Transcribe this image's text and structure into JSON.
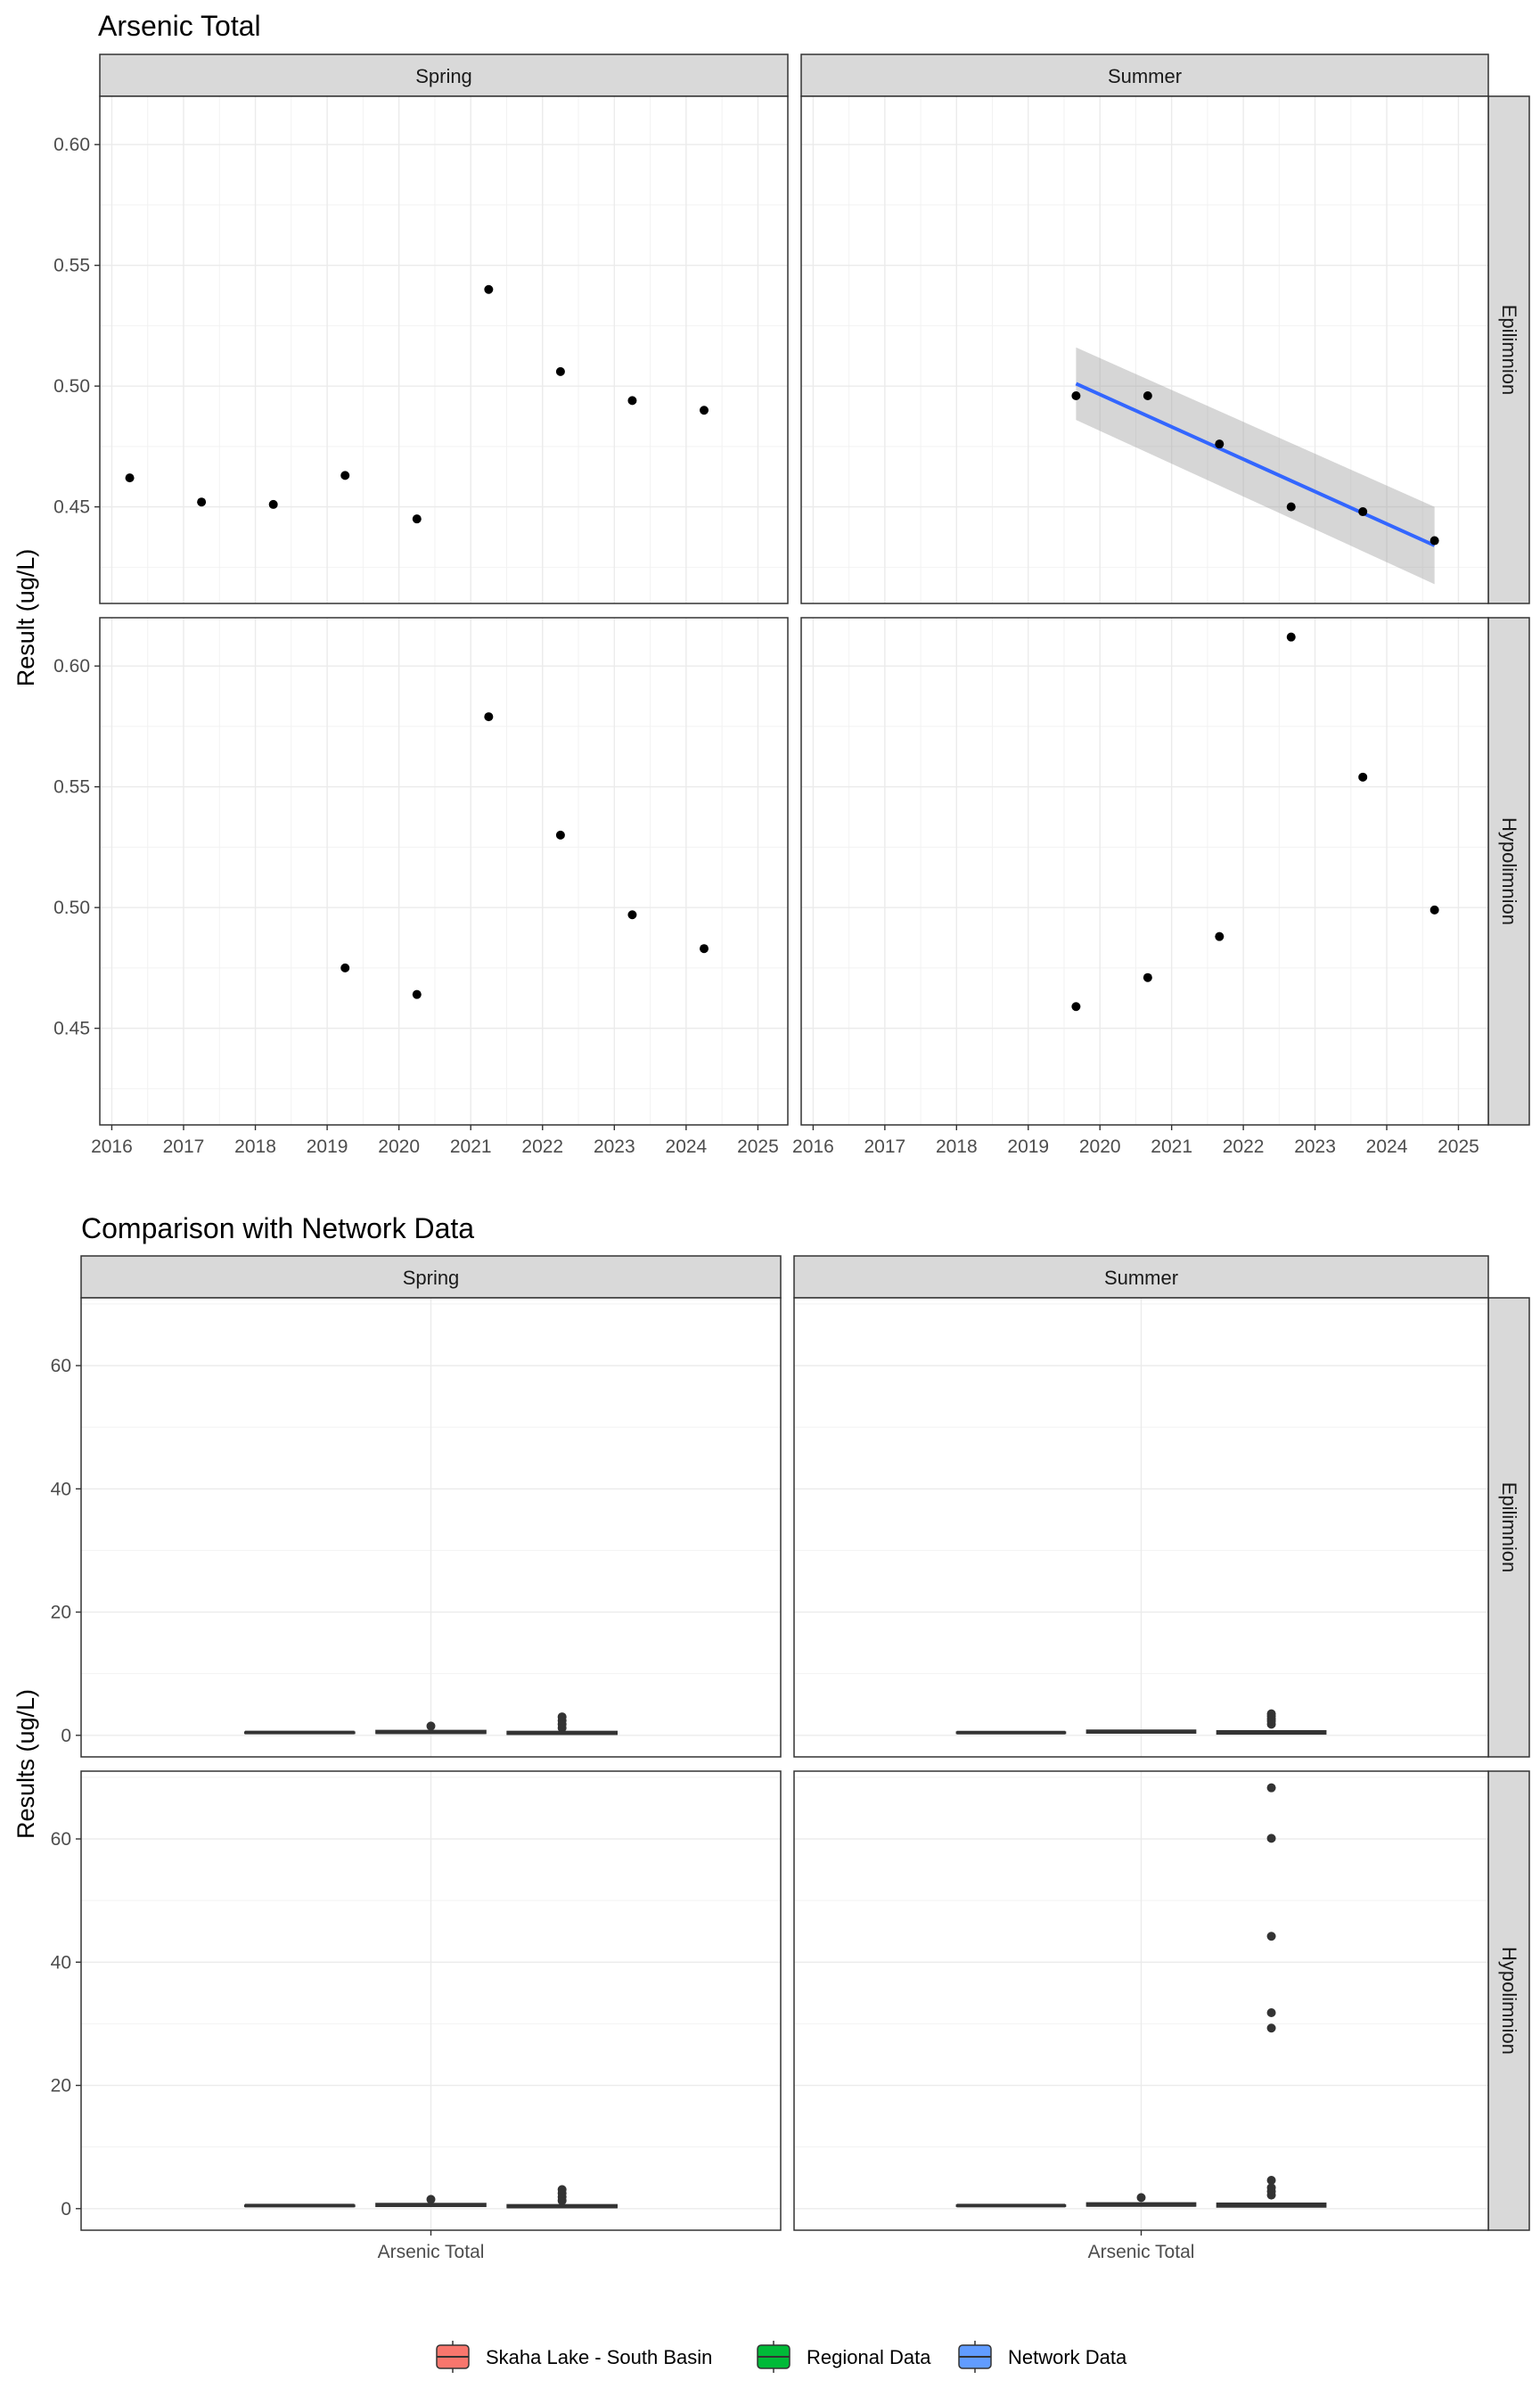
{
  "chart_data": [
    {
      "type": "scatter",
      "title": "Arsenic Total",
      "ylabel": "Result (ug/L)",
      "xlabel": "",
      "x_ticks": [
        "2016",
        "2017",
        "2018",
        "2019",
        "2020",
        "2021",
        "2022",
        "2023",
        "2024",
        "2025"
      ],
      "y_ticks": [
        "0.45",
        "0.50",
        "0.55",
        "0.60"
      ],
      "xlim": [
        "2015-11",
        "2025-06"
      ],
      "ylim": [
        0.41,
        0.62
      ],
      "columns": [
        "Spring",
        "Summer"
      ],
      "rows": [
        "Epilimnion",
        "Hypolimnion"
      ],
      "grid": true,
      "panels": [
        {
          "column": "Spring",
          "row": "Epilimnion",
          "points": [
            {
              "x": "2016-04",
              "y": 0.462
            },
            {
              "x": "2017-04",
              "y": 0.452
            },
            {
              "x": "2018-04",
              "y": 0.451
            },
            {
              "x": "2019-04",
              "y": 0.463
            },
            {
              "x": "2020-04",
              "y": 0.445
            },
            {
              "x": "2021-04",
              "y": 0.54
            },
            {
              "x": "2022-04",
              "y": 0.506
            },
            {
              "x": "2023-04",
              "y": 0.494
            },
            {
              "x": "2024-04",
              "y": 0.49
            }
          ]
        },
        {
          "column": "Summer",
          "row": "Epilimnion",
          "points": [
            {
              "x": "2019-09",
              "y": 0.496
            },
            {
              "x": "2020-09",
              "y": 0.496
            },
            {
              "x": "2021-09",
              "y": 0.476
            },
            {
              "x": "2022-09",
              "y": 0.45
            },
            {
              "x": "2023-09",
              "y": 0.448
            },
            {
              "x": "2024-09",
              "y": 0.436
            }
          ],
          "trend": {
            "start": {
              "x": "2019-09",
              "y": 0.501
            },
            "end": {
              "x": "2024-09",
              "y": 0.434
            },
            "band_lower": [
              0.486,
              0.418
            ],
            "band_upper": [
              0.516,
              0.45
            ],
            "color": "#3366ff",
            "band_color": "#999999"
          }
        },
        {
          "column": "Spring",
          "row": "Hypolimnion",
          "points": [
            {
              "x": "2019-04",
              "y": 0.475
            },
            {
              "x": "2020-04",
              "y": 0.464
            },
            {
              "x": "2021-04",
              "y": 0.579
            },
            {
              "x": "2022-04",
              "y": 0.53
            },
            {
              "x": "2023-04",
              "y": 0.497
            },
            {
              "x": "2024-04",
              "y": 0.483
            }
          ]
        },
        {
          "column": "Summer",
          "row": "Hypolimnion",
          "points": [
            {
              "x": "2019-09",
              "y": 0.459
            },
            {
              "x": "2020-09",
              "y": 0.471
            },
            {
              "x": "2021-09",
              "y": 0.488
            },
            {
              "x": "2022-09",
              "y": 0.612
            },
            {
              "x": "2023-09",
              "y": 0.554
            },
            {
              "x": "2024-09",
              "y": 0.499
            }
          ]
        }
      ]
    },
    {
      "type": "box",
      "title": "Comparison with Network Data",
      "ylabel": "Results (ug/L)",
      "categories": [
        "Arsenic Total"
      ],
      "y_ticks": [
        "0",
        "20",
        "40",
        "60"
      ],
      "ylim": [
        -3.5,
        71
      ],
      "columns": [
        "Spring",
        "Summer"
      ],
      "rows": [
        "Epilimnion",
        "Hypolimnion"
      ],
      "grid": true,
      "legend_position": "bottom",
      "series": [
        {
          "name": "Skaha Lake - South Basin",
          "color": "#f8766d"
        },
        {
          "name": "Regional Data",
          "color": "#00ba38"
        },
        {
          "name": "Network Data",
          "color": "#619cff"
        }
      ],
      "panels": [
        {
          "column": "Spring",
          "row": "Epilimnion",
          "boxes": [
            {
              "series": "Skaha Lake - South Basin",
              "q1": 0.45,
              "median": 0.46,
              "q3": 0.5,
              "outliers": []
            },
            {
              "series": "Regional Data",
              "q1": 0.35,
              "median": 0.5,
              "q3": 0.75,
              "outliers": [
                1.5
              ]
            },
            {
              "series": "Network Data",
              "q1": 0.2,
              "median": 0.35,
              "q3": 0.6,
              "outliers": [
                1.2,
                1.8,
                2.4,
                3.0
              ]
            }
          ]
        },
        {
          "column": "Summer",
          "row": "Epilimnion",
          "boxes": [
            {
              "series": "Skaha Lake - South Basin",
              "q1": 0.44,
              "median": 0.45,
              "q3": 0.5,
              "outliers": []
            },
            {
              "series": "Regional Data",
              "q1": 0.4,
              "median": 0.55,
              "q3": 0.8,
              "outliers": []
            },
            {
              "series": "Network Data",
              "q1": 0.25,
              "median": 0.4,
              "q3": 0.7,
              "outliers": [
                1.8,
                2.3,
                2.7,
                3.1,
                3.5
              ]
            }
          ]
        },
        {
          "column": "Spring",
          "row": "Hypolimnion",
          "boxes": [
            {
              "series": "Skaha Lake - South Basin",
              "q1": 0.47,
              "median": 0.49,
              "q3": 0.53,
              "outliers": []
            },
            {
              "series": "Regional Data",
              "q1": 0.4,
              "median": 0.55,
              "q3": 0.8,
              "outliers": [
                1.5
              ]
            },
            {
              "series": "Network Data",
              "q1": 0.2,
              "median": 0.35,
              "q3": 0.6,
              "outliers": [
                1.3,
                1.9,
                2.5,
                3.1
              ]
            }
          ]
        },
        {
          "column": "Summer",
          "row": "Hypolimnion",
          "boxes": [
            {
              "series": "Skaha Lake - South Basin",
              "q1": 0.47,
              "median": 0.49,
              "q3": 0.55,
              "outliers": []
            },
            {
              "series": "Regional Data",
              "q1": 0.45,
              "median": 0.6,
              "q3": 0.9,
              "outliers": [
                1.8
              ]
            },
            {
              "series": "Network Data",
              "q1": 0.3,
              "median": 0.5,
              "q3": 0.85,
              "outliers": [
                2.2,
                2.8,
                3.4,
                4.6,
                29.3,
                31.8,
                44.2,
                60.1,
                68.3
              ]
            }
          ]
        }
      ]
    }
  ]
}
